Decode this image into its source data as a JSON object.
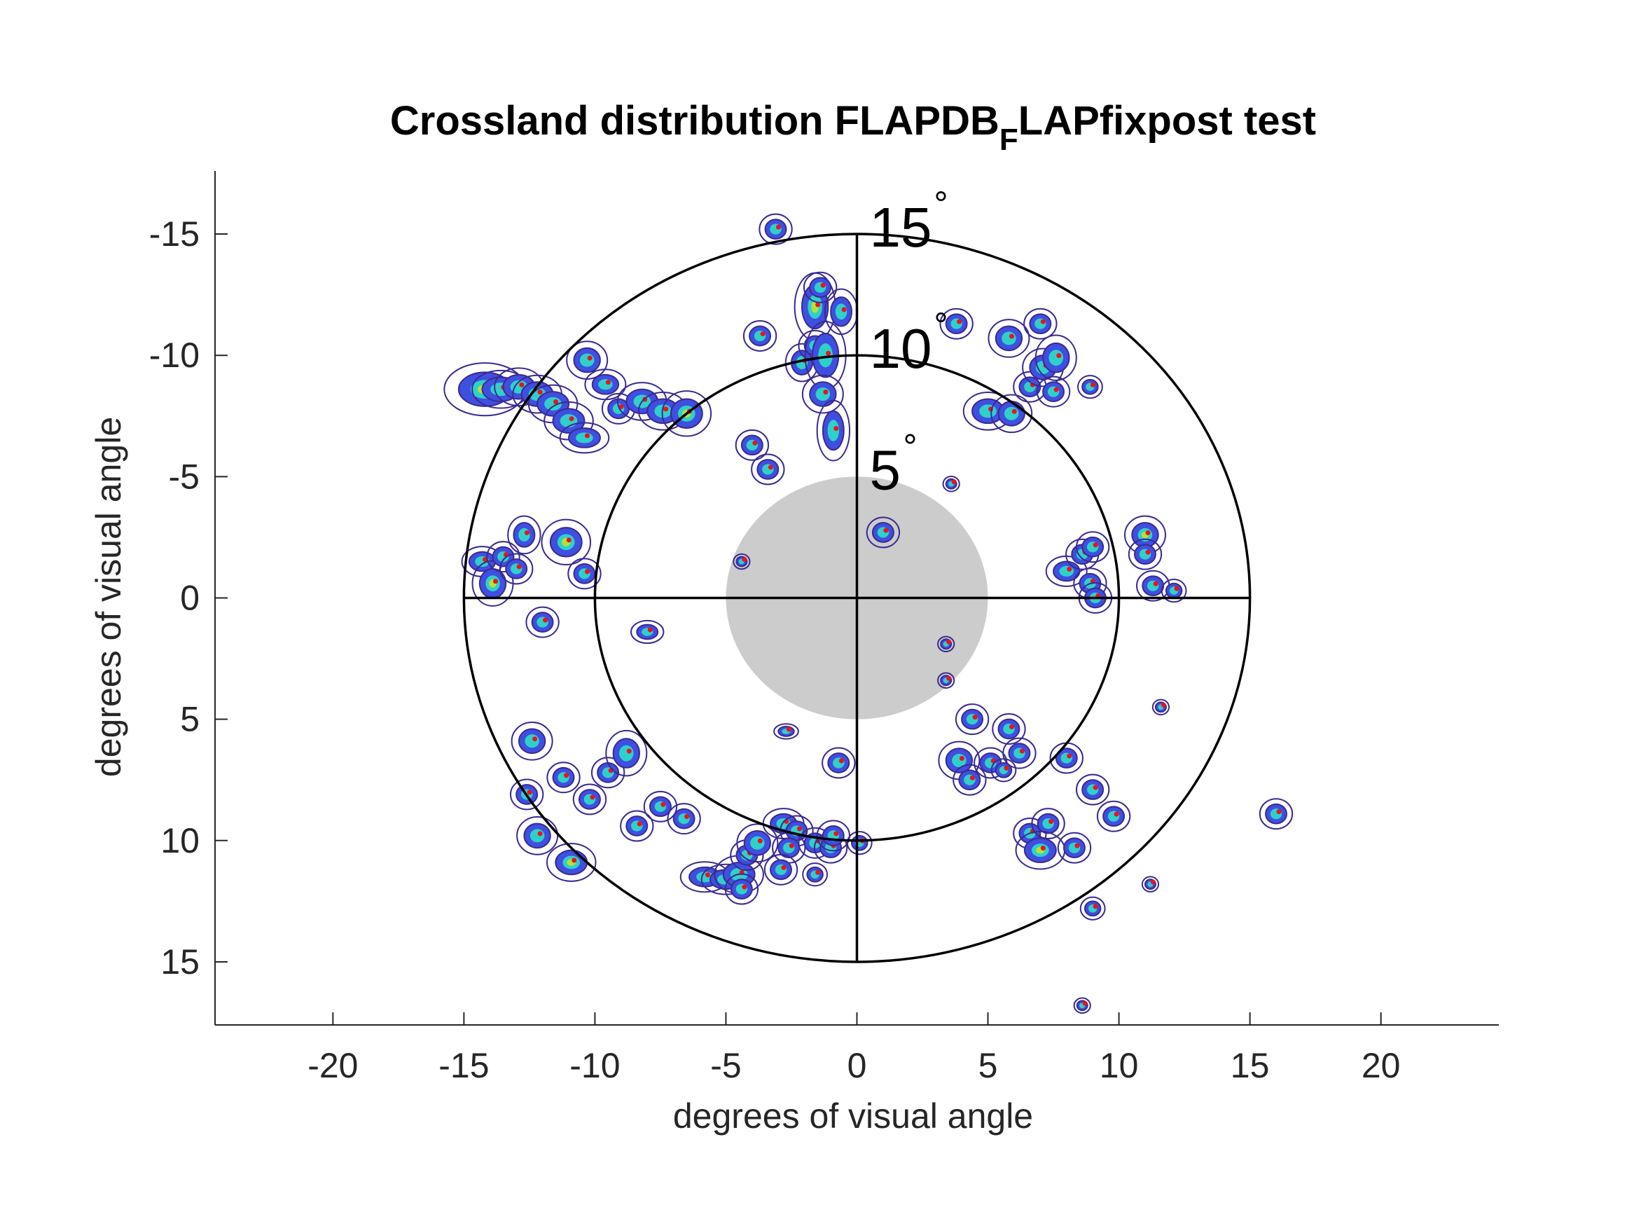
{
  "chart_data": {
    "type": "contour",
    "title": {
      "main": "Crossland distribution FLAPDB",
      "subscript": "F",
      "rest": "LAPfixpost test"
    },
    "xlabel": "degrees of visual angle",
    "ylabel": "degrees of visual angle",
    "xlim": [
      -24.5,
      24.5
    ],
    "ylim": [
      -17.6,
      17.6
    ],
    "y_reversed": true,
    "x_ticks": [
      -20,
      -15,
      -10,
      -5,
      0,
      5,
      10,
      15,
      20
    ],
    "x_tick_labels": [
      "-20",
      "-15",
      "-10",
      "-5",
      "0",
      "5",
      "10",
      "15",
      "20"
    ],
    "y_ticks": [
      -15,
      -10,
      -5,
      0,
      5,
      10,
      15
    ],
    "y_tick_labels": [
      "-15",
      "-10",
      "-5",
      "0",
      "5",
      "10",
      "15"
    ],
    "grid": false,
    "central_scotoma": {
      "radius": 5,
      "color": "#cccccc"
    },
    "rings": [
      {
        "radius": 5,
        "label": "5",
        "degree_mark": "°",
        "draw_circle": false
      },
      {
        "radius": 10,
        "label": "10",
        "degree_mark": "°",
        "draw_circle": true
      },
      {
        "radius": 15,
        "label": "15",
        "degree_mark": "°",
        "draw_circle": true
      }
    ],
    "crosshair_extent": 15,
    "colors": {
      "contour_outer": "#3b2a8f",
      "blob_fill": "#3f4fe0",
      "blob_hot": "#2fd0c8",
      "blob_peak": "#b8e03a",
      "fixation_dot": "#e8141c",
      "axes": "#262626",
      "ring": "#000000"
    },
    "fixation_clusters": [
      {
        "x": -14.2,
        "y": -8.6,
        "w": 1.0,
        "h": 0.7,
        "peak": true
      },
      {
        "x": -13.6,
        "y": -8.6,
        "w": 0.7,
        "h": 0.5
      },
      {
        "x": -12.9,
        "y": -8.7,
        "w": 0.6,
        "h": 0.5
      },
      {
        "x": -12.2,
        "y": -8.4,
        "w": 0.6,
        "h": 0.5
      },
      {
        "x": -11.6,
        "y": -8.0,
        "w": 0.6,
        "h": 0.5
      },
      {
        "x": -11.0,
        "y": -7.3,
        "w": 0.6,
        "h": 0.5
      },
      {
        "x": -10.4,
        "y": -6.6,
        "w": 0.6,
        "h": 0.4
      },
      {
        "x": -10.3,
        "y": -9.8,
        "w": 0.5,
        "h": 0.5
      },
      {
        "x": -9.6,
        "y": -8.8,
        "w": 0.5,
        "h": 0.4
      },
      {
        "x": -9.1,
        "y": -7.8,
        "w": 0.4,
        "h": 0.4
      },
      {
        "x": -8.2,
        "y": -8.1,
        "w": 0.6,
        "h": 0.5
      },
      {
        "x": -7.4,
        "y": -7.7,
        "w": 0.6,
        "h": 0.5
      },
      {
        "x": -6.5,
        "y": -7.6,
        "w": 0.6,
        "h": 0.6,
        "peak": true
      },
      {
        "x": -4.0,
        "y": -6.3,
        "w": 0.4,
        "h": 0.4
      },
      {
        "x": -3.4,
        "y": -5.3,
        "w": 0.4,
        "h": 0.4
      },
      {
        "x": -3.1,
        "y": -15.2,
        "w": 0.4,
        "h": 0.4
      },
      {
        "x": -3.7,
        "y": -10.8,
        "w": 0.4,
        "h": 0.4
      },
      {
        "x": -2.1,
        "y": -9.7,
        "w": 0.4,
        "h": 0.5
      },
      {
        "x": -1.6,
        "y": -12.0,
        "w": 0.5,
        "h": 0.9,
        "peak": true
      },
      {
        "x": -1.4,
        "y": -12.8,
        "w": 0.4,
        "h": 0.4
      },
      {
        "x": -1.6,
        "y": -10.4,
        "w": 0.4,
        "h": 0.4
      },
      {
        "x": -1.2,
        "y": -10.0,
        "w": 0.5,
        "h": 0.9
      },
      {
        "x": -1.3,
        "y": -8.4,
        "w": 0.5,
        "h": 0.5
      },
      {
        "x": -0.9,
        "y": -6.9,
        "w": 0.4,
        "h": 0.8
      },
      {
        "x": -0.6,
        "y": -11.8,
        "w": 0.4,
        "h": 0.6
      },
      {
        "x": 1.0,
        "y": -2.7,
        "w": 0.4,
        "h": 0.4
      },
      {
        "x": 3.8,
        "y": -11.3,
        "w": 0.4,
        "h": 0.4
      },
      {
        "x": 5.8,
        "y": -10.7,
        "w": 0.5,
        "h": 0.5
      },
      {
        "x": 5.0,
        "y": -7.7,
        "w": 0.6,
        "h": 0.5
      },
      {
        "x": 5.9,
        "y": -7.6,
        "w": 0.5,
        "h": 0.5
      },
      {
        "x": 6.6,
        "y": -8.7,
        "w": 0.4,
        "h": 0.4
      },
      {
        "x": 7.1,
        "y": -9.5,
        "w": 0.5,
        "h": 0.5
      },
      {
        "x": 7.6,
        "y": -9.9,
        "w": 0.5,
        "h": 0.6
      },
      {
        "x": 7.0,
        "y": -11.3,
        "w": 0.4,
        "h": 0.4
      },
      {
        "x": 7.5,
        "y": -8.5,
        "w": 0.4,
        "h": 0.4
      },
      {
        "x": 8.9,
        "y": -8.7,
        "w": 0.3,
        "h": 0.3
      },
      {
        "x": -14.3,
        "y": -1.5,
        "w": 0.5,
        "h": 0.4
      },
      {
        "x": -13.9,
        "y": -0.6,
        "w": 0.5,
        "h": 0.6,
        "peak": true
      },
      {
        "x": -13.5,
        "y": -1.7,
        "w": 0.4,
        "h": 0.4
      },
      {
        "x": -13.0,
        "y": -1.2,
        "w": 0.4,
        "h": 0.4
      },
      {
        "x": -12.7,
        "y": -2.6,
        "w": 0.4,
        "h": 0.5
      },
      {
        "x": -11.1,
        "y": -2.3,
        "w": 0.6,
        "h": 0.6,
        "peak": true
      },
      {
        "x": -10.4,
        "y": -1.0,
        "w": 0.4,
        "h": 0.4
      },
      {
        "x": -12.0,
        "y": 1.0,
        "w": 0.4,
        "h": 0.4
      },
      {
        "x": -8.0,
        "y": 1.4,
        "w": 0.4,
        "h": 0.3
      },
      {
        "x": -4.4,
        "y": -1.5,
        "w": 0.2,
        "h": 0.2
      },
      {
        "x": 8.0,
        "y": -1.1,
        "w": 0.5,
        "h": 0.4
      },
      {
        "x": 8.6,
        "y": -1.8,
        "w": 0.4,
        "h": 0.4
      },
      {
        "x": 9.0,
        "y": -2.1,
        "w": 0.4,
        "h": 0.4
      },
      {
        "x": 8.9,
        "y": -0.6,
        "w": 0.4,
        "h": 0.4
      },
      {
        "x": 9.1,
        "y": 0.0,
        "w": 0.4,
        "h": 0.4
      },
      {
        "x": 11.0,
        "y": -2.6,
        "w": 0.5,
        "h": 0.5,
        "peak": true
      },
      {
        "x": 11.0,
        "y": -1.8,
        "w": 0.4,
        "h": 0.4
      },
      {
        "x": 11.3,
        "y": -0.5,
        "w": 0.4,
        "h": 0.4
      },
      {
        "x": 12.1,
        "y": -0.3,
        "w": 0.3,
        "h": 0.3
      },
      {
        "x": 3.4,
        "y": 1.9,
        "w": 0.2,
        "h": 0.2
      },
      {
        "x": 3.4,
        "y": 3.4,
        "w": 0.2,
        "h": 0.2
      },
      {
        "x": 3.6,
        "y": -4.7,
        "w": 0.2,
        "h": 0.2
      },
      {
        "x": 11.6,
        "y": 4.5,
        "w": 0.2,
        "h": 0.2
      },
      {
        "x": -12.4,
        "y": 5.9,
        "w": 0.5,
        "h": 0.5
      },
      {
        "x": -12.6,
        "y": 8.1,
        "w": 0.4,
        "h": 0.4
      },
      {
        "x": -12.2,
        "y": 9.8,
        "w": 0.5,
        "h": 0.5
      },
      {
        "x": -11.2,
        "y": 7.4,
        "w": 0.4,
        "h": 0.4
      },
      {
        "x": -10.9,
        "y": 10.9,
        "w": 0.6,
        "h": 0.5,
        "peak": true
      },
      {
        "x": -10.2,
        "y": 8.3,
        "w": 0.4,
        "h": 0.4
      },
      {
        "x": -9.5,
        "y": 7.2,
        "w": 0.4,
        "h": 0.4
      },
      {
        "x": -8.8,
        "y": 6.4,
        "w": 0.5,
        "h": 0.6
      },
      {
        "x": -8.4,
        "y": 9.4,
        "w": 0.4,
        "h": 0.4
      },
      {
        "x": -7.5,
        "y": 8.6,
        "w": 0.4,
        "h": 0.4
      },
      {
        "x": -6.6,
        "y": 9.1,
        "w": 0.4,
        "h": 0.4
      },
      {
        "x": -2.7,
        "y": 5.5,
        "w": 0.3,
        "h": 0.2
      },
      {
        "x": -0.7,
        "y": 6.8,
        "w": 0.4,
        "h": 0.4
      },
      {
        "x": -5.8,
        "y": 11.5,
        "w": 0.6,
        "h": 0.4
      },
      {
        "x": -5.0,
        "y": 11.6,
        "w": 0.6,
        "h": 0.4
      },
      {
        "x": -4.5,
        "y": 11.4,
        "w": 0.6,
        "h": 0.5
      },
      {
        "x": -4.4,
        "y": 12.0,
        "w": 0.4,
        "h": 0.4
      },
      {
        "x": -4.2,
        "y": 10.6,
        "w": 0.4,
        "h": 0.4
      },
      {
        "x": -3.8,
        "y": 10.1,
        "w": 0.5,
        "h": 0.5
      },
      {
        "x": -2.8,
        "y": 9.3,
        "w": 0.5,
        "h": 0.4
      },
      {
        "x": -2.3,
        "y": 9.6,
        "w": 0.4,
        "h": 0.4
      },
      {
        "x": -2.6,
        "y": 10.3,
        "w": 0.4,
        "h": 0.4
      },
      {
        "x": -2.9,
        "y": 11.2,
        "w": 0.4,
        "h": 0.4
      },
      {
        "x": -1.6,
        "y": 10.1,
        "w": 0.4,
        "h": 0.4
      },
      {
        "x": -1.0,
        "y": 10.3,
        "w": 0.4,
        "h": 0.4
      },
      {
        "x": -0.9,
        "y": 9.8,
        "w": 0.4,
        "h": 0.4
      },
      {
        "x": -1.6,
        "y": 11.4,
        "w": 0.3,
        "h": 0.3
      },
      {
        "x": 0.1,
        "y": 10.1,
        "w": 0.3,
        "h": 0.3
      },
      {
        "x": 3.9,
        "y": 6.7,
        "w": 0.5,
        "h": 0.5
      },
      {
        "x": 4.3,
        "y": 7.5,
        "w": 0.4,
        "h": 0.4
      },
      {
        "x": 4.4,
        "y": 5.0,
        "w": 0.4,
        "h": 0.4
      },
      {
        "x": 5.1,
        "y": 6.8,
        "w": 0.4,
        "h": 0.4
      },
      {
        "x": 5.8,
        "y": 5.4,
        "w": 0.4,
        "h": 0.4
      },
      {
        "x": 6.2,
        "y": 6.4,
        "w": 0.4,
        "h": 0.4
      },
      {
        "x": 5.6,
        "y": 7.1,
        "w": 0.3,
        "h": 0.3
      },
      {
        "x": 8.0,
        "y": 6.6,
        "w": 0.4,
        "h": 0.4
      },
      {
        "x": 6.6,
        "y": 9.7,
        "w": 0.4,
        "h": 0.4
      },
      {
        "x": 7.3,
        "y": 9.3,
        "w": 0.4,
        "h": 0.4
      },
      {
        "x": 7.0,
        "y": 10.4,
        "w": 0.6,
        "h": 0.5,
        "peak": true
      },
      {
        "x": 8.3,
        "y": 10.3,
        "w": 0.4,
        "h": 0.4
      },
      {
        "x": 9.0,
        "y": 7.9,
        "w": 0.4,
        "h": 0.4
      },
      {
        "x": 9.8,
        "y": 9.0,
        "w": 0.4,
        "h": 0.4
      },
      {
        "x": 9.0,
        "y": 12.8,
        "w": 0.3,
        "h": 0.3
      },
      {
        "x": 11.2,
        "y": 11.8,
        "w": 0.2,
        "h": 0.2
      },
      {
        "x": 16.0,
        "y": 8.9,
        "w": 0.4,
        "h": 0.4
      },
      {
        "x": 8.6,
        "y": 16.8,
        "w": 0.2,
        "h": 0.2
      }
    ]
  }
}
